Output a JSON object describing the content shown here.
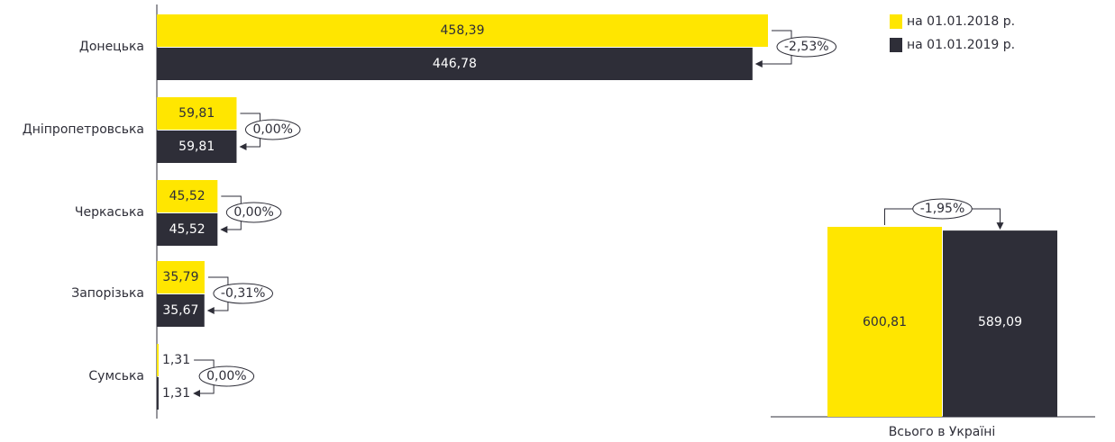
{
  "chart_data": [
    {
      "type": "hbar",
      "categories": [
        "Донецька",
        "Дніпропетровська",
        "Черкаська",
        "Запорізька",
        "Сумська"
      ],
      "series": [
        {
          "name": "на 01.01.2018 р.",
          "color": "#ffe600",
          "values": [
            458.39,
            59.81,
            45.52,
            35.79,
            1.31
          ],
          "value_labels": [
            "458,39",
            "59,81",
            "45,52",
            "35,79",
            "1,31"
          ]
        },
        {
          "name": "на 01.01.2019 р.",
          "color": "#2e2e38",
          "values": [
            446.78,
            59.81,
            45.52,
            35.67,
            1.31
          ],
          "value_labels": [
            "446,78",
            "59,81",
            "45,52",
            "35,67",
            "1,31"
          ]
        }
      ],
      "annotations": [
        "-2,53%",
        "0,00%",
        "0,00%",
        "-0,31%",
        "0,00%"
      ],
      "legend": "top-right"
    },
    {
      "type": "bar",
      "categories": [
        "Всього в Україні"
      ],
      "series": [
        {
          "name": "на 01.01.2018 р.",
          "color": "#ffe600",
          "values": [
            600.81
          ],
          "value_labels": [
            "600,81"
          ]
        },
        {
          "name": "на 01.01.2019 р.",
          "color": "#2e2e38",
          "values": [
            589.09
          ],
          "value_labels": [
            "589,09"
          ]
        }
      ],
      "annotations": [
        "-1,95%"
      ]
    }
  ]
}
